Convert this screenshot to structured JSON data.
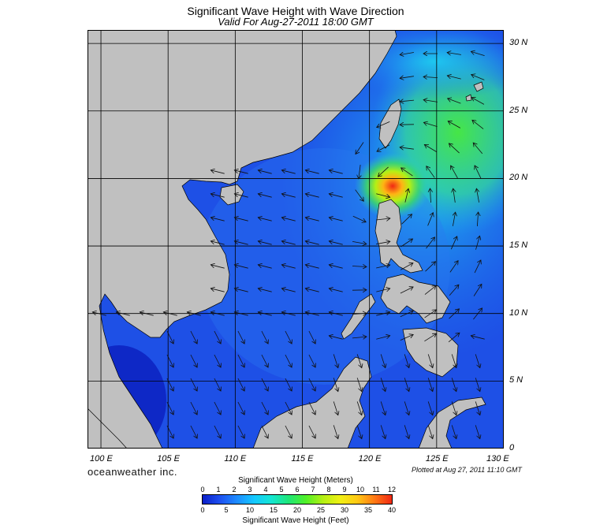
{
  "header": {
    "title": "Significant Wave Height with Wave Direction",
    "subtitle": "Valid For Aug-27-2011 18:00 GMT"
  },
  "map": {
    "latitude_labels": [
      "30 N",
      "25 N",
      "20 N",
      "15 N",
      "10 N",
      "5 N",
      "0"
    ],
    "longitude_labels": [
      "100 E",
      "105 E",
      "110 E",
      "115 E",
      "120 E",
      "125 E",
      "130 E"
    ],
    "extent": {
      "lon_min": 99,
      "lon_max": 130,
      "lat_min": 0,
      "lat_max": 31
    },
    "storm_center": {
      "lon": 121.5,
      "lat": 19.5
    },
    "land_color": "#c0c0c0",
    "water_base_color": "#1e4fe0"
  },
  "footer": {
    "brand": "oceanweather inc.",
    "plotted": "Plotted at Aug 27, 2011 11:10 GMT"
  },
  "colorbar": {
    "title_meters": "Significant Wave Height (Meters)",
    "title_feet": "Significant Wave Height (Feet)",
    "meter_ticks": [
      "0",
      "1",
      "2",
      "3",
      "4",
      "5",
      "6",
      "7",
      "8",
      "9",
      "10",
      "11",
      "12"
    ],
    "feet_ticks": [
      "0",
      "5",
      "10",
      "15",
      "20",
      "25",
      "30",
      "35",
      "40"
    ],
    "colors": [
      "#0a1ec8",
      "#1e50f0",
      "#1e8cff",
      "#14c8ff",
      "#14e6d2",
      "#1ee678",
      "#50f028",
      "#b4f014",
      "#f0f014",
      "#ffc814",
      "#ff7814",
      "#f02814"
    ]
  }
}
